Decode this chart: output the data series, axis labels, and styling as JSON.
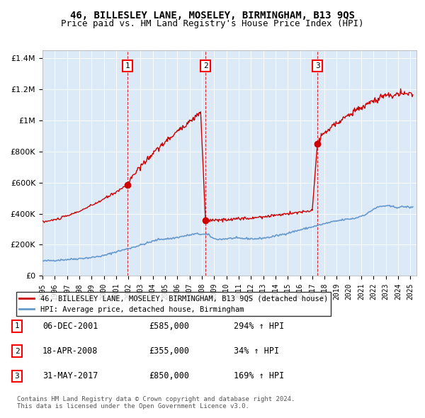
{
  "title1": "46, BILLESLEY LANE, MOSELEY, BIRMINGHAM, B13 9QS",
  "title2": "Price paid vs. HM Land Registry's House Price Index (HPI)",
  "ylabel": "",
  "xlabel": "",
  "bg_color": "#dce9f7",
  "plot_bg": "#dce9f7",
  "line1_color": "#cc0000",
  "line2_color": "#6699cc",
  "transaction_color": "#cc0000",
  "vline_color": "#cc0000",
  "sale_dates": [
    2001.92,
    2008.29,
    2017.42
  ],
  "sale_prices": [
    585000,
    355000,
    850000
  ],
  "sale_labels": [
    "1",
    "2",
    "3"
  ],
  "legend1": "46, BILLESLEY LANE, MOSELEY, BIRMINGHAM, B13 9QS (detached house)",
  "legend2": "HPI: Average price, detached house, Birmingham",
  "table_entries": [
    {
      "num": "1",
      "date": "06-DEC-2001",
      "price": "£585,000",
      "change": "294% ↑ HPI"
    },
    {
      "num": "2",
      "date": "18-APR-2008",
      "price": "£355,000",
      "change": "34% ↑ HPI"
    },
    {
      "num": "3",
      "date": "31-MAY-2017",
      "price": "£850,000",
      "change": "169% ↑ HPI"
    }
  ],
  "footer": "Contains HM Land Registry data © Crown copyright and database right 2024.\nThis data is licensed under the Open Government Licence v3.0.",
  "ylim": [
    0,
    1450000
  ],
  "xlim_start": 1995.0,
  "xlim_end": 2025.5
}
